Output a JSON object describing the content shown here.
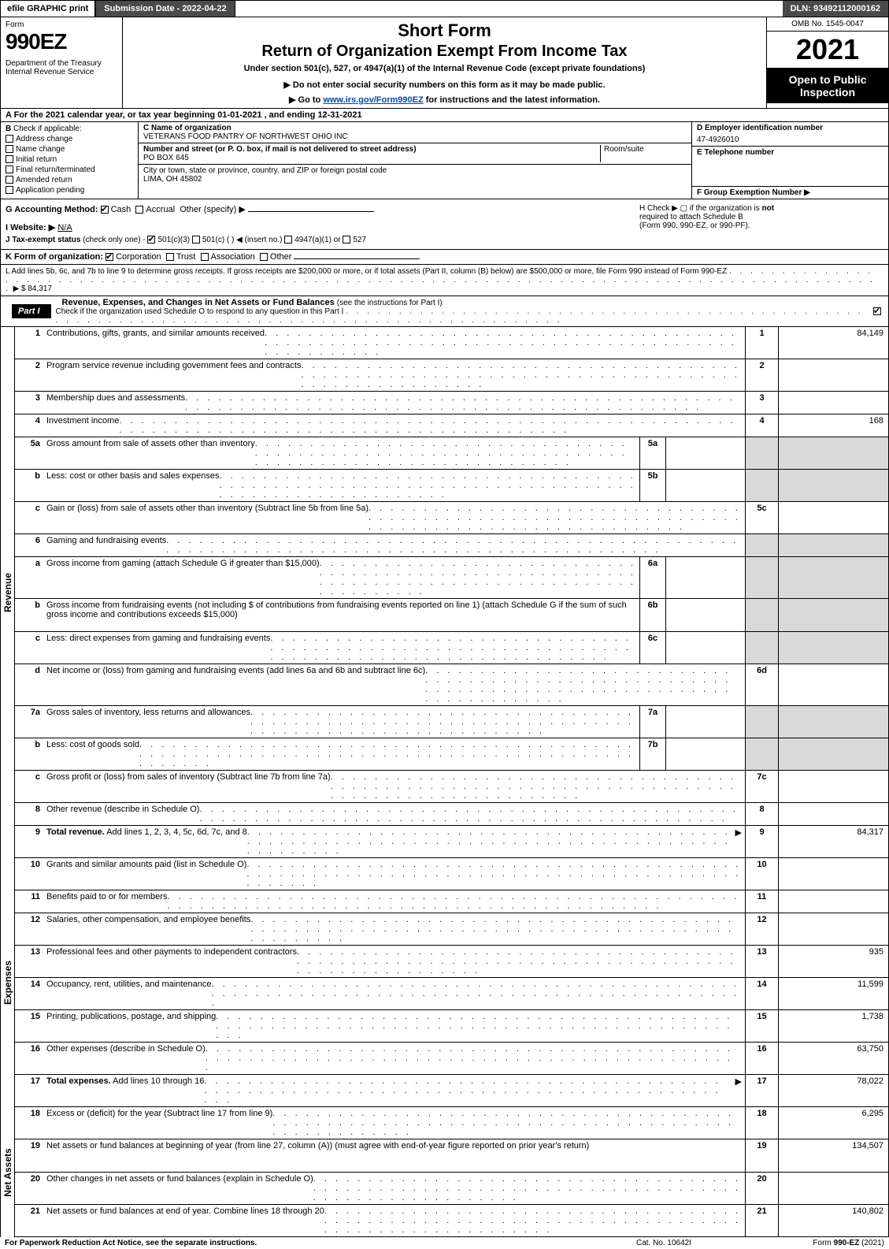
{
  "topbar": {
    "efile": "efile GRAPHIC print",
    "subdate_label": "Submission Date - 2022-04-22",
    "dln": "DLN: 93492112000162"
  },
  "header": {
    "form_word": "Form",
    "form_no": "990EZ",
    "dept": "Department of the Treasury\nInternal Revenue Service",
    "short": "Short Form",
    "title": "Return of Organization Exempt From Income Tax",
    "subtitle": "Under section 501(c), 527, or 4947(a)(1) of the Internal Revenue Code (except private foundations)",
    "note1": "▶ Do not enter social security numbers on this form as it may be made public.",
    "note2_pre": "▶ Go to ",
    "note2_link": "www.irs.gov/Form990EZ",
    "note2_post": " for instructions and the latest information.",
    "omb": "OMB No. 1545-0047",
    "year": "2021",
    "open": "Open to Public Inspection"
  },
  "rowA": "A  For the 2021 calendar year, or tax year beginning 01-01-2021 , and ending 12-31-2021",
  "B": {
    "lead": "B",
    "text": "Check if applicable:",
    "opts": [
      "Address change",
      "Name change",
      "Initial return",
      "Final return/terminated",
      "Amended return",
      "Application pending"
    ]
  },
  "C": {
    "name_lbl": "C Name of organization",
    "name": "VETERANS FOOD PANTRY OF NORTHWEST OHIO INC",
    "street_lbl": "Number and street (or P. O. box, if mail is not delivered to street address)",
    "room_lbl": "Room/suite",
    "street": "PO BOX 645",
    "city_lbl": "City or town, state or province, country, and ZIP or foreign postal code",
    "city": "LIMA, OH  45802"
  },
  "D": {
    "lbl": "D Employer identification number",
    "val": "47-4926010"
  },
  "E": {
    "lbl": "E Telephone number",
    "val": ""
  },
  "F": {
    "lbl": "F Group Exemption Number   ▶",
    "val": ""
  },
  "G": {
    "lbl": "G Accounting Method:",
    "opts": [
      "Cash",
      "Accrual"
    ],
    "other": "Other (specify) ▶",
    "checked": "Cash"
  },
  "H": {
    "text1": "H   Check ▶   ▢  if the organization is ",
    "bold_not": "not",
    "text2": " required to attach Schedule B",
    "text3": "(Form 990, 990-EZ, or 990-PF)."
  },
  "I": {
    "lbl": "I Website: ▶",
    "val": "N/A"
  },
  "J": {
    "lbl": "J Tax-exempt status",
    "sub": "(check only one) -",
    "o1": "501(c)(3)",
    "o2": "501(c) (   ) ◀ (insert no.)",
    "o3": "4947(a)(1) or",
    "o4": "527"
  },
  "K": {
    "lbl": "K Form of organization:",
    "opts": [
      "Corporation",
      "Trust",
      "Association",
      "Other"
    ],
    "checked": "Corporation"
  },
  "L": {
    "text": "L Add lines 5b, 6c, and 7b to line 9 to determine gross receipts. If gross receipts are $200,000 or more, or if total assets (Part II, column (B) below) are $500,000 or more, file Form 990 instead of Form 990-EZ",
    "amount_lbl": "▶ $",
    "amount": "84,317"
  },
  "part1": {
    "tag": "Part I",
    "title": "Revenue, Expenses, and Changes in Net Assets or Fund Balances",
    "title_sub": "(see the instructions for Part I)",
    "sub": "Check if the organization used Schedule O to respond to any question in this Part I",
    "sub_checked": true
  },
  "sections": [
    {
      "vlabel": "Revenue",
      "rows": [
        {
          "no": "1",
          "desc": "Contributions, gifts, grants, and similar amounts received",
          "col": "1",
          "val": "84,149"
        },
        {
          "no": "2",
          "desc": "Program service revenue including government fees and contracts",
          "col": "2",
          "val": ""
        },
        {
          "no": "3",
          "desc": "Membership dues and assessments",
          "col": "3",
          "val": ""
        },
        {
          "no": "4",
          "desc": "Investment income",
          "col": "4",
          "val": "168"
        },
        {
          "no": "5a",
          "desc": "Gross amount from sale of assets other than inventory",
          "mid": "5a",
          "midval": "",
          "shadecol": true
        },
        {
          "no": "b",
          "desc": "Less: cost or other basis and sales expenses",
          "mid": "5b",
          "midval": "",
          "shadecol": true
        },
        {
          "no": "c",
          "desc": "Gain or (loss) from sale of assets other than inventory (Subtract line 5b from line 5a)",
          "col": "5c",
          "val": ""
        },
        {
          "no": "6",
          "desc": "Gaming and fundraising events",
          "shadecol": true,
          "noval": true
        },
        {
          "no": "a",
          "desc": "Gross income from gaming (attach Schedule G if greater than $15,000)",
          "mid": "6a",
          "midval": "",
          "shadecol": true
        },
        {
          "no": "b",
          "desc": "Gross income from fundraising events (not including $                          of contributions from fundraising events reported on line 1) (attach Schedule G if the sum of such gross income and contributions exceeds $15,000)",
          "mid": "6b",
          "midval": "",
          "shadecol": true,
          "tall": true
        },
        {
          "no": "c",
          "desc": "Less: direct expenses from gaming and fundraising events",
          "mid": "6c",
          "midval": "",
          "shadecol": true
        },
        {
          "no": "d",
          "desc": "Net income or (loss) from gaming and fundraising events (add lines 6a and 6b and subtract line 6c)",
          "col": "6d",
          "val": ""
        },
        {
          "no": "7a",
          "desc": "Gross sales of inventory, less returns and allowances",
          "mid": "7a",
          "midval": "",
          "shadecol": true
        },
        {
          "no": "b",
          "desc": "Less: cost of goods sold",
          "mid": "7b",
          "midval": "",
          "shadecol": true
        },
        {
          "no": "c",
          "desc": "Gross profit or (loss) from sales of inventory (Subtract line 7b from line 7a)",
          "col": "7c",
          "val": ""
        },
        {
          "no": "8",
          "desc": "Other revenue (describe in Schedule O)",
          "col": "8",
          "val": ""
        },
        {
          "no": "9",
          "desc": "Total revenue. Add lines 1, 2, 3, 4, 5c, 6d, 7c, and 8",
          "col": "9",
          "val": "84,317",
          "bold": true,
          "arrow": true
        }
      ]
    },
    {
      "vlabel": "Expenses",
      "rows": [
        {
          "no": "10",
          "desc": "Grants and similar amounts paid (list in Schedule O)",
          "col": "10",
          "val": ""
        },
        {
          "no": "11",
          "desc": "Benefits paid to or for members",
          "col": "11",
          "val": ""
        },
        {
          "no": "12",
          "desc": "Salaries, other compensation, and employee benefits",
          "col": "12",
          "val": ""
        },
        {
          "no": "13",
          "desc": "Professional fees and other payments to independent contractors",
          "col": "13",
          "val": "935"
        },
        {
          "no": "14",
          "desc": "Occupancy, rent, utilities, and maintenance",
          "col": "14",
          "val": "11,599"
        },
        {
          "no": "15",
          "desc": "Printing, publications, postage, and shipping",
          "col": "15",
          "val": "1,738"
        },
        {
          "no": "16",
          "desc": "Other expenses (describe in Schedule O)",
          "col": "16",
          "val": "63,750"
        },
        {
          "no": "17",
          "desc": "Total expenses. Add lines 10 through 16",
          "col": "17",
          "val": "78,022",
          "bold": true,
          "arrow": true
        }
      ]
    },
    {
      "vlabel": "Net Assets",
      "rows": [
        {
          "no": "18",
          "desc": "Excess or (deficit) for the year (Subtract line 17 from line 9)",
          "col": "18",
          "val": "6,295"
        },
        {
          "no": "19",
          "desc": "Net assets or fund balances at beginning of year (from line 27, column (A)) (must agree with end-of-year figure reported on prior year's return)",
          "col": "19",
          "val": "134,507",
          "tall": true
        },
        {
          "no": "20",
          "desc": "Other changes in net assets or fund balances (explain in Schedule O)",
          "col": "20",
          "val": ""
        },
        {
          "no": "21",
          "desc": "Net assets or fund balances at end of year. Combine lines 18 through 20",
          "col": "21",
          "val": "140,802"
        }
      ]
    }
  ],
  "footer": {
    "left": "For Paperwork Reduction Act Notice, see the separate instructions.",
    "center": "Cat. No. 10642I",
    "right_pre": "Form ",
    "right_bold": "990-EZ",
    "right_post": " (2021)"
  },
  "colors": {
    "darkbar": "#4a4a4a",
    "shade": "#d9d9d9",
    "link": "#0645ad"
  }
}
